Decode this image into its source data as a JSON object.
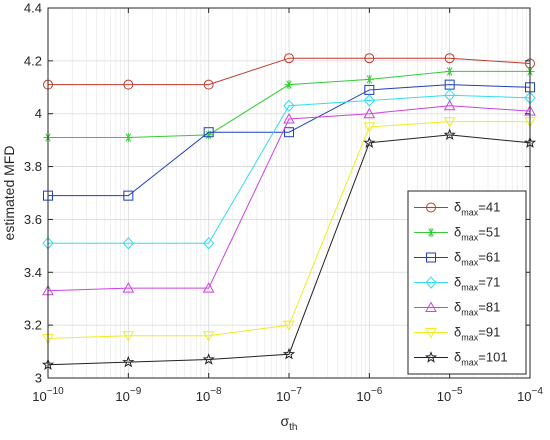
{
  "chart_data": {
    "type": "line",
    "title": "",
    "xlabel": "σ",
    "xlabel_sub": "th",
    "ylabel": "estimated MFD",
    "x_scale": "log",
    "x": [
      1e-10,
      1e-09,
      1e-08,
      1e-07,
      1e-06,
      1e-05,
      0.0001
    ],
    "x_tick_labels": [
      {
        "base": "10",
        "exp": "−10"
      },
      {
        "base": "10",
        "exp": "−9"
      },
      {
        "base": "10",
        "exp": "−8"
      },
      {
        "base": "10",
        "exp": "−7"
      },
      {
        "base": "10",
        "exp": "−6"
      },
      {
        "base": "10",
        "exp": "−5"
      },
      {
        "base": "10",
        "exp": "−4"
      }
    ],
    "xlim": [
      1e-10,
      0.0001
    ],
    "ylim": [
      3,
      4.4
    ],
    "y_ticks": [
      3,
      3.2,
      3.4,
      3.6,
      3.8,
      4,
      4.2,
      4.4
    ],
    "y_tick_labels": [
      "3",
      "3.2",
      "3.4",
      "3.6",
      "3.8",
      "4",
      "4.2",
      "4.4"
    ],
    "grid": true,
    "legend_position": "bottom-right",
    "series": [
      {
        "name_symbol": "δ",
        "name_sub": "max",
        "name_value": "=41",
        "color": "#c0392b",
        "marker": "circle",
        "values": [
          4.11,
          4.11,
          4.11,
          4.21,
          4.21,
          4.21,
          4.19
        ]
      },
      {
        "name_symbol": "δ",
        "name_sub": "max",
        "name_value": "=51",
        "color": "#33cc33",
        "marker": "asterisk",
        "values": [
          3.91,
          3.91,
          3.92,
          4.11,
          4.13,
          4.16,
          4.16
        ]
      },
      {
        "name_symbol": "δ",
        "name_sub": "max",
        "name_value": "=61",
        "color": "#1f3fbf",
        "marker": "square",
        "values": [
          3.69,
          3.69,
          3.93,
          3.93,
          4.09,
          4.11,
          4.1
        ]
      },
      {
        "name_symbol": "δ",
        "name_sub": "max",
        "name_value": "=71",
        "color": "#33ddee",
        "marker": "diamond",
        "values": [
          3.51,
          3.51,
          3.51,
          4.03,
          4.05,
          4.07,
          4.06
        ]
      },
      {
        "name_symbol": "δ",
        "name_sub": "max",
        "name_value": "=81",
        "color": "#cc44dd",
        "marker": "triangle-up",
        "values": [
          3.33,
          3.34,
          3.34,
          3.98,
          4.0,
          4.03,
          4.01
        ]
      },
      {
        "name_symbol": "δ",
        "name_sub": "max",
        "name_value": "=91",
        "color": "#eeee22",
        "marker": "triangle-down",
        "values": [
          3.15,
          3.16,
          3.16,
          3.2,
          3.95,
          3.97,
          3.97
        ]
      },
      {
        "name_symbol": "δ",
        "name_sub": "max",
        "name_value": "=101",
        "color": "#222222",
        "marker": "pentagram",
        "values": [
          3.05,
          3.06,
          3.07,
          3.09,
          3.89,
          3.92,
          3.89
        ]
      }
    ]
  }
}
